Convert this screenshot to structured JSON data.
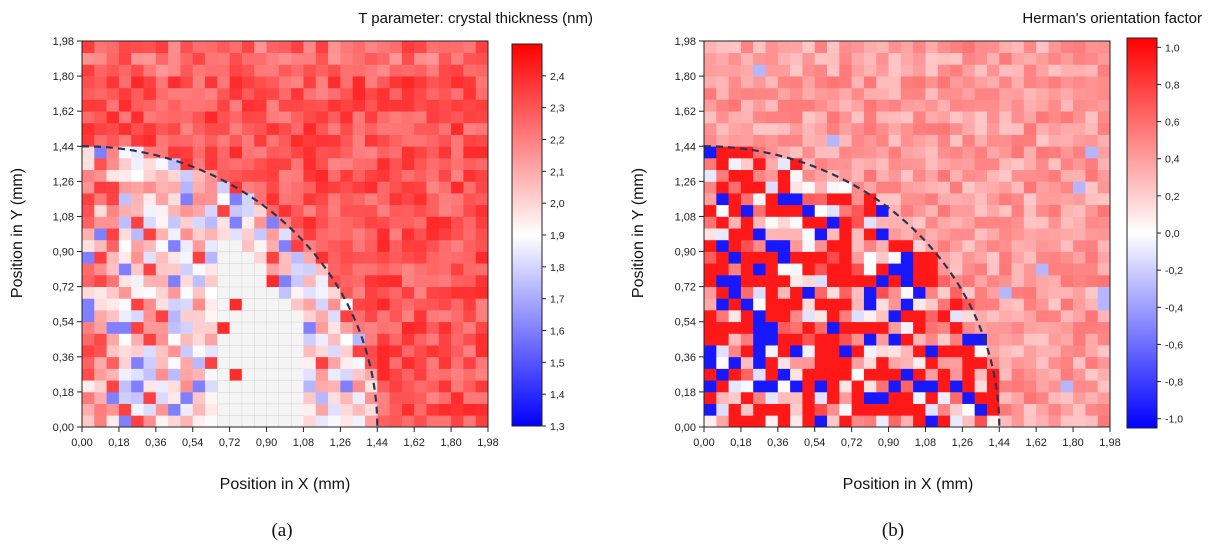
{
  "chart_data": [
    {
      "type": "heatmap",
      "caption": "(a)",
      "title": "T parameter: crystal thickness (nm)",
      "xlabel": "Position in  X (mm)",
      "ylabel": "Position in Y (mm)",
      "xlim": [
        0,
        1.98
      ],
      "ylim": [
        0,
        1.98
      ],
      "xticks": [
        "0,00",
        "0,18",
        "0,36",
        "0,54",
        "0,72",
        "0,90",
        "1,08",
        "1,26",
        "1,44",
        "1,62",
        "1,80",
        "1,98"
      ],
      "yticks": [
        "0,00",
        "0,18",
        "0,36",
        "0,54",
        "0,72",
        "0,90",
        "1,08",
        "1,26",
        "1,44",
        "1,62",
        "1,80",
        "1,98"
      ],
      "grid_size": 33,
      "colorbar": {
        "min": 1.3,
        "max": 2.5,
        "ticks": [
          "1,3",
          "1,4",
          "1,5",
          "1,6",
          "1,7",
          "1,8",
          "1,9",
          "2,0",
          "2,1",
          "2,2",
          "2,3",
          "2,4"
        ],
        "tick_values": [
          1.3,
          1.4,
          1.5,
          1.6,
          1.7,
          1.8,
          1.9,
          2.0,
          2.1,
          2.2,
          2.3,
          2.4
        ],
        "colors": [
          "#0000ff",
          "#ffffff",
          "#ff0000"
        ]
      },
      "pattern": {
        "outside_arc_value": 2.3,
        "arc_radius_mm": 1.44,
        "undefined_region": "grid cells (no data) near X 0,72–1,08, Y 0,00–1,08"
      }
    },
    {
      "type": "heatmap",
      "caption": "(b)",
      "title": "Herman's orientation factor",
      "xlabel": "Position in X (mm)",
      "ylabel": "Position in Y (mm)",
      "xlim": [
        0,
        1.98
      ],
      "ylim": [
        0,
        1.98
      ],
      "xticks": [
        "0,00",
        "0,18",
        "0,36",
        "0,54",
        "0,72",
        "0,90",
        "1,08",
        "1,26",
        "1,44",
        "1,62",
        "1,80",
        "1,98"
      ],
      "yticks": [
        "0,00",
        "0,18",
        "0,36",
        "0,54",
        "0,72",
        "0,90",
        "1,08",
        "1,26",
        "1,44",
        "1,62",
        "1,80",
        "1,98"
      ],
      "grid_size": 33,
      "colorbar": {
        "min": -1.05,
        "max": 1.05,
        "ticks": [
          "-1,0",
          "-0,8",
          "-0,6",
          "-0,4",
          "-0,2",
          "0,0",
          "0,2",
          "0,4",
          "0,6",
          "0,8",
          "1,0"
        ],
        "tick_values": [
          -1.0,
          -0.8,
          -0.6,
          -0.4,
          -0.2,
          0.0,
          0.2,
          0.4,
          0.6,
          0.8,
          1.0
        ],
        "colors": [
          "#0000ff",
          "#ffffff",
          "#ff0000"
        ]
      },
      "pattern": {
        "outside_arc_value": 0.4,
        "arc_radius_mm": 1.44
      }
    }
  ]
}
